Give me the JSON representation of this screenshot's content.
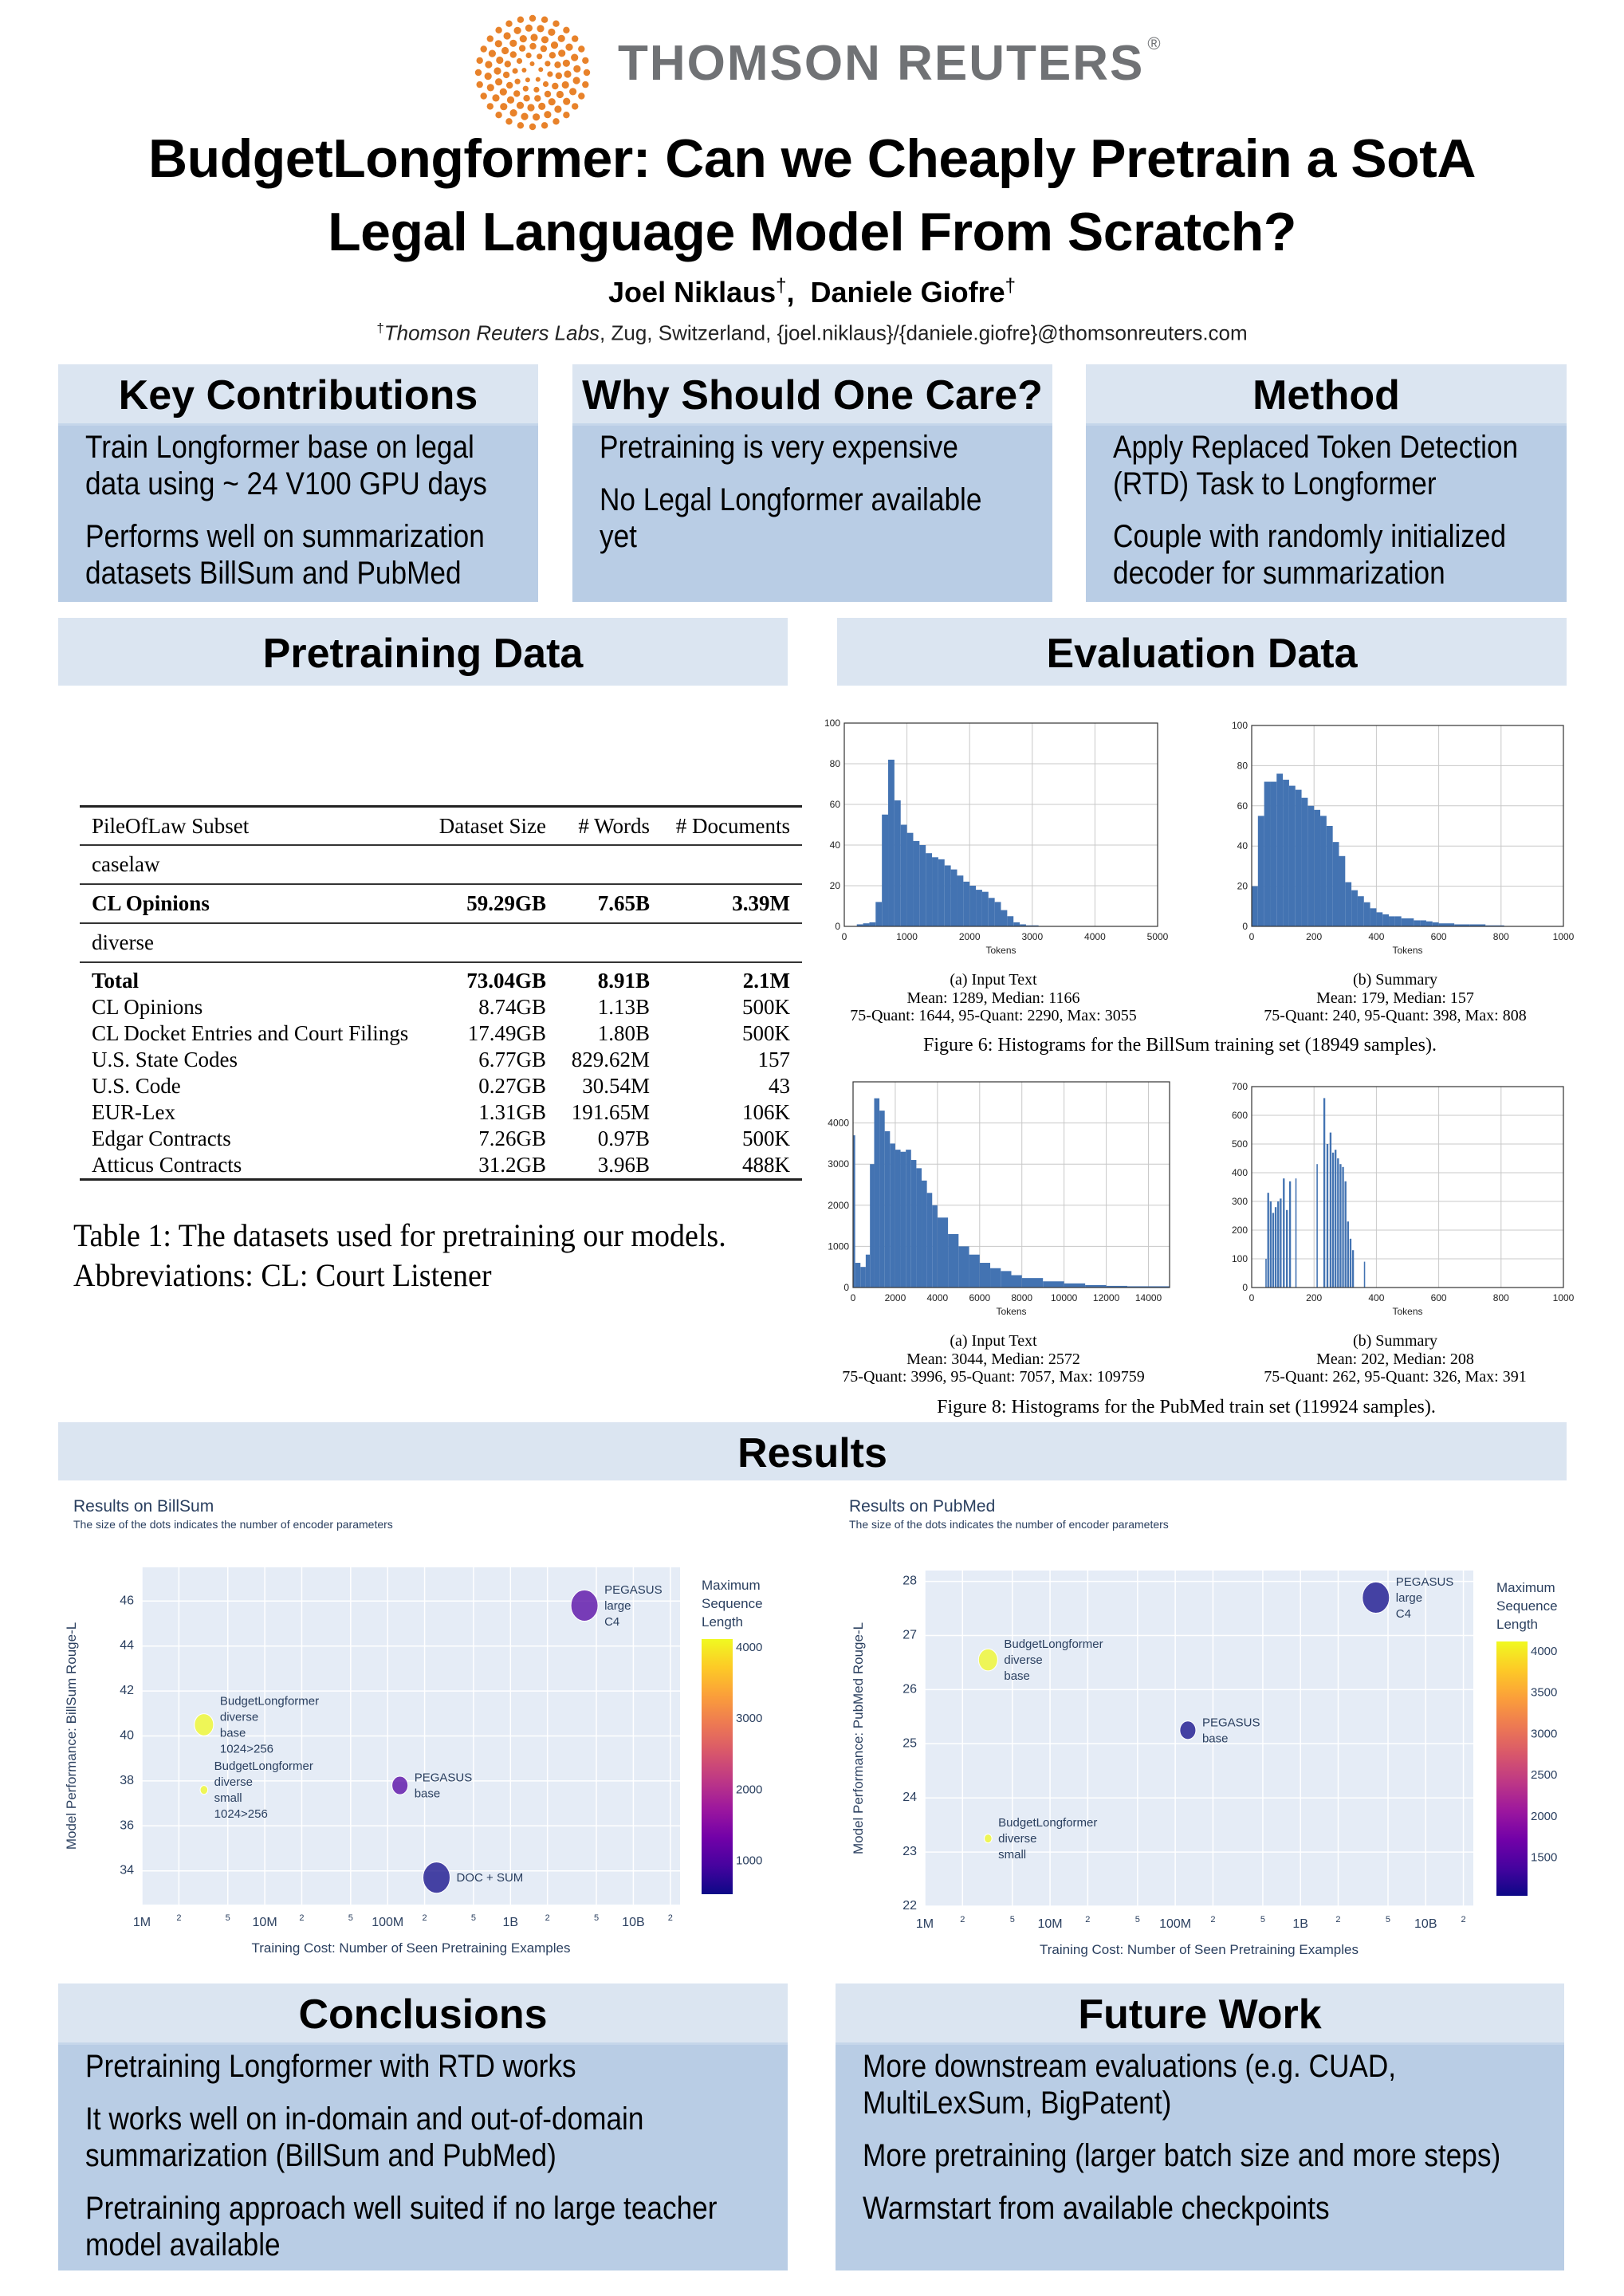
{
  "header": {
    "logo_text": "THOMSON REUTERS",
    "logo_mark": "®",
    "title_line1": "BudgetLongformer: Can we Cheaply Pretrain a SotA",
    "title_line2": "Legal Language Model From Scratch?",
    "authors": [
      {
        "name": "Joel Niklaus",
        "mark": "†"
      },
      {
        "name": "Daniele Giofre",
        "mark": "†"
      }
    ],
    "author_sep": ",",
    "affiliation_mark": "†",
    "affiliation_org": "Thomson Reuters Labs",
    "affiliation_rest": ", Zug, Switzerland, {joel.niklaus}/{daniele.giofre}@thomsonreuters.com"
  },
  "boxes": [
    {
      "title": "Key Contributions",
      "items": [
        "Train Longformer base on legal data using ~ 24 V100 GPU days",
        "Performs well on summarization datasets BillSum and PubMed"
      ]
    },
    {
      "title": "Why Should One Care?",
      "items": [
        "Pretraining is very expensive",
        "No Legal Longformer available yet"
      ]
    },
    {
      "title": "Method",
      "items": [
        "Apply Replaced Token Detection (RTD) Task to Longformer",
        "Couple with randomly initialized decoder for summarization"
      ]
    }
  ],
  "pretraining": {
    "title": "Pretraining Data",
    "table": {
      "headers": [
        "PileOfLaw Subset",
        "Dataset Size",
        "# Words",
        "# Documents"
      ],
      "group1": "caselaw",
      "group1_row": [
        "CL Opinions",
        "59.29GB",
        "7.65B",
        "3.39M"
      ],
      "group2": "diverse",
      "total_row": [
        "Total",
        "73.04GB",
        "8.91B",
        "2.1M"
      ],
      "rows": [
        [
          "CL Opinions",
          "8.74GB",
          "1.13B",
          "500K"
        ],
        [
          "CL Docket Entries and Court Filings",
          "17.49GB",
          "1.80B",
          "500K"
        ],
        [
          "U.S. State Codes",
          "6.77GB",
          "829.62M",
          "157"
        ],
        [
          "U.S. Code",
          "0.27GB",
          "30.54M",
          "43"
        ],
        [
          "EUR-Lex",
          "1.31GB",
          "191.65M",
          "106K"
        ],
        [
          "Edgar Contracts",
          "7.26GB",
          "0.97B",
          "500K"
        ],
        [
          "Atticus Contracts",
          "31.2GB",
          "3.96B",
          "488K"
        ]
      ]
    },
    "caption_line1": "Table 1: The datasets used for pretraining our models.",
    "caption_line2": "Abbreviations: CL: Court Listener"
  },
  "evaluation": {
    "title": "Evaluation Data",
    "figure6_caption": "Figure 6: Histograms for the BillSum training set (18949 samples).",
    "figure8_caption": "Figure 8: Histograms for the PubMed train set (119924 samples)."
  },
  "results": {
    "title": "Results"
  },
  "conclusions": {
    "title": "Conclusions",
    "items": [
      "Pretraining Longformer with RTD works",
      "It works well on in-domain and out-of-domain summarization (BillSum and PubMed)",
      "Pretraining approach well suited if no large teacher model available"
    ]
  },
  "future_work": {
    "title": "Future Work",
    "items": [
      "More downstream evaluations (e.g. CUAD, MultiLexSum, BigPatent)",
      "More pretraining (larger batch size and more steps)",
      "Warmstart from available checkpoints"
    ]
  },
  "colors": {
    "accent_orange": "#e8822a",
    "head_band": "#dbe5f1",
    "body_band": "#b9cde5",
    "bar": "#4373b2"
  },
  "chart_data": [
    {
      "id": "billsum-input",
      "type": "bar",
      "caption": [
        "(a) Input Text",
        "Mean: 1289, Median: 1166",
        "75-Quant: 1644, 95-Quant: 2290, Max: 3055"
      ],
      "xlabel": "Tokens",
      "xlim": [
        0,
        5000
      ],
      "ylim": [
        0,
        100
      ],
      "xticks": [
        0,
        1000,
        2000,
        3000,
        4000,
        5000
      ],
      "yticks": [
        0,
        20,
        40,
        60,
        80,
        100
      ],
      "bins": [
        [
          200,
          300,
          1
        ],
        [
          300,
          400,
          1.5
        ],
        [
          400,
          500,
          2
        ],
        [
          500,
          600,
          12
        ],
        [
          600,
          700,
          55
        ],
        [
          700,
          800,
          82
        ],
        [
          800,
          900,
          62
        ],
        [
          900,
          1000,
          50
        ],
        [
          1000,
          1100,
          46
        ],
        [
          1100,
          1200,
          42
        ],
        [
          1200,
          1300,
          40
        ],
        [
          1300,
          1400,
          36
        ],
        [
          1400,
          1500,
          34
        ],
        [
          1500,
          1600,
          33
        ],
        [
          1600,
          1700,
          30
        ],
        [
          1700,
          1800,
          28
        ],
        [
          1800,
          1900,
          25
        ],
        [
          1900,
          2000,
          22
        ],
        [
          2000,
          2100,
          20
        ],
        [
          2100,
          2200,
          18
        ],
        [
          2200,
          2300,
          17
        ],
        [
          2300,
          2400,
          14
        ],
        [
          2400,
          2500,
          12
        ],
        [
          2500,
          2600,
          8
        ],
        [
          2600,
          2700,
          5
        ],
        [
          2700,
          2800,
          2
        ],
        [
          2800,
          2900,
          1
        ],
        [
          2900,
          3000,
          0.5
        ],
        [
          3000,
          3100,
          0.5
        ]
      ]
    },
    {
      "id": "billsum-summary",
      "type": "bar",
      "caption": [
        "(b) Summary",
        "Mean: 179, Median: 157",
        "75-Quant: 240, 95-Quant: 398, Max: 808"
      ],
      "xlabel": "Tokens",
      "xlim": [
        0,
        1000
      ],
      "ylim": [
        0,
        100
      ],
      "xticks": [
        0,
        200,
        400,
        600,
        800,
        1000
      ],
      "yticks": [
        0,
        20,
        40,
        60,
        80,
        100
      ],
      "bins": [
        [
          0,
          20,
          20
        ],
        [
          20,
          40,
          55
        ],
        [
          40,
          60,
          72
        ],
        [
          60,
          80,
          72
        ],
        [
          80,
          100,
          76
        ],
        [
          100,
          120,
          73
        ],
        [
          120,
          140,
          70
        ],
        [
          140,
          160,
          68
        ],
        [
          160,
          180,
          64
        ],
        [
          180,
          200,
          60
        ],
        [
          200,
          220,
          58
        ],
        [
          220,
          240,
          55
        ],
        [
          240,
          260,
          50
        ],
        [
          260,
          280,
          42
        ],
        [
          280,
          300,
          35
        ],
        [
          300,
          320,
          22
        ],
        [
          320,
          340,
          18
        ],
        [
          340,
          360,
          15
        ],
        [
          360,
          380,
          12
        ],
        [
          380,
          400,
          9
        ],
        [
          400,
          420,
          7
        ],
        [
          420,
          440,
          6
        ],
        [
          440,
          460,
          5
        ],
        [
          460,
          480,
          5
        ],
        [
          480,
          500,
          4
        ],
        [
          500,
          520,
          4
        ],
        [
          520,
          540,
          3
        ],
        [
          540,
          560,
          3
        ],
        [
          560,
          580,
          2.5
        ],
        [
          580,
          600,
          2
        ],
        [
          600,
          650,
          1.5
        ],
        [
          650,
          700,
          1
        ],
        [
          700,
          750,
          1
        ],
        [
          750,
          810,
          0.5
        ]
      ]
    },
    {
      "id": "pubmed-input",
      "type": "bar",
      "caption": [
        "(a) Input Text",
        "Mean: 3044, Median: 2572",
        "75-Quant: 3996, 95-Quant: 7057, Max: 109759"
      ],
      "xlabel": "Tokens",
      "xlim": [
        0,
        15000
      ],
      "ylim": [
        0,
        5000
      ],
      "xticks": [
        0,
        2000,
        4000,
        6000,
        8000,
        10000,
        12000,
        14000
      ],
      "yticks": [
        0,
        1000,
        2000,
        3000,
        4000
      ],
      "bins": [
        [
          0,
          100,
          3700
        ],
        [
          100,
          350,
          600
        ],
        [
          350,
          600,
          500
        ],
        [
          600,
          800,
          800
        ],
        [
          800,
          1000,
          3000
        ],
        [
          1000,
          1250,
          4600
        ],
        [
          1250,
          1500,
          4300
        ],
        [
          1500,
          1750,
          3800
        ],
        [
          1750,
          2000,
          3500
        ],
        [
          2000,
          2250,
          3350
        ],
        [
          2250,
          2500,
          3300
        ],
        [
          2500,
          2750,
          3350
        ],
        [
          2750,
          3000,
          3100
        ],
        [
          3000,
          3250,
          2900
        ],
        [
          3250,
          3500,
          2600
        ],
        [
          3500,
          3750,
          2300
        ],
        [
          3750,
          4000,
          2000
        ],
        [
          4000,
          4500,
          1700
        ],
        [
          4500,
          5000,
          1300
        ],
        [
          5000,
          5500,
          1000
        ],
        [
          5500,
          6000,
          800
        ],
        [
          6000,
          6500,
          600
        ],
        [
          6500,
          7000,
          470
        ],
        [
          7000,
          7500,
          400
        ],
        [
          7500,
          8000,
          300
        ],
        [
          8000,
          9000,
          230
        ],
        [
          9000,
          10000,
          150
        ],
        [
          10000,
          11000,
          100
        ],
        [
          11000,
          12000,
          60
        ],
        [
          12000,
          13000,
          40
        ],
        [
          13000,
          15000,
          30
        ]
      ]
    },
    {
      "id": "pubmed-summary",
      "type": "bar",
      "caption": [
        "(b) Summary",
        "Mean: 202, Median: 208",
        "75-Quant: 262, 95-Quant: 326, Max: 391"
      ],
      "xlabel": "Tokens",
      "xlim": [
        0,
        1000
      ],
      "ylim": [
        0,
        700
      ],
      "xticks": [
        0,
        200,
        400,
        600,
        800,
        1000
      ],
      "yticks": [
        0,
        100,
        200,
        300,
        400,
        500,
        600,
        700
      ],
      "bins": [
        [
          44,
          48,
          100
        ],
        [
          50,
          56,
          330
        ],
        [
          58,
          64,
          300
        ],
        [
          66,
          72,
          260
        ],
        [
          74,
          80,
          280
        ],
        [
          82,
          88,
          300
        ],
        [
          90,
          96,
          310
        ],
        [
          100,
          106,
          380
        ],
        [
          110,
          116,
          270
        ],
        [
          120,
          126,
          370
        ],
        [
          140,
          144,
          380
        ],
        [
          208,
          212,
          430
        ],
        [
          230,
          236,
          660
        ],
        [
          240,
          246,
          500
        ],
        [
          250,
          256,
          540
        ],
        [
          258,
          264,
          470
        ],
        [
          266,
          272,
          480
        ],
        [
          274,
          280,
          450
        ],
        [
          282,
          288,
          430
        ],
        [
          290,
          296,
          420
        ],
        [
          298,
          304,
          370
        ],
        [
          306,
          312,
          230
        ],
        [
          314,
          320,
          170
        ],
        [
          322,
          328,
          130
        ],
        [
          360,
          364,
          90
        ]
      ]
    },
    {
      "id": "results-billsum",
      "type": "scatter",
      "title": "Results on BillSum",
      "subtitle": "The size of the dots indicates the number of encoder parameters",
      "xlabel": "Training Cost: Number of Seen Pretraining Examples",
      "ylabel": "Model Performance:  BillSum Rouge-L",
      "xscale": "log",
      "xlim": [
        1000000,
        24000000000
      ],
      "ylim": [
        32.5,
        47.5
      ],
      "xticks": [
        [
          1000000,
          "1M"
        ],
        [
          2000000,
          "2"
        ],
        [
          5000000,
          "5"
        ],
        [
          10000000,
          "10M"
        ],
        [
          20000000,
          "2"
        ],
        [
          50000000,
          "5"
        ],
        [
          100000000,
          "100M"
        ],
        [
          200000000,
          "2"
        ],
        [
          500000000,
          "5"
        ],
        [
          1000000000,
          "1B"
        ],
        [
          2000000000,
          "2"
        ],
        [
          5000000000,
          "5"
        ],
        [
          10000000000,
          "10B"
        ],
        [
          20000000000,
          "2"
        ]
      ],
      "yticks": [
        34,
        36,
        38,
        40,
        42,
        44,
        46
      ],
      "colorbar": {
        "title": [
          "Maximum",
          "Sequence",
          "Length"
        ],
        "range": [
          513,
          4100
        ],
        "ticks": [
          1000,
          2000,
          3000,
          4000
        ]
      },
      "points": [
        {
          "label": [
            "BudgetLongformer",
            "diverse",
            "base",
            "1024>256"
          ],
          "x": 3200000,
          "y": 40.5,
          "max_seq_len": 4096,
          "size_rel": 0.5
        },
        {
          "label": [
            "BudgetLongformer",
            "diverse",
            "small",
            "1024>256"
          ],
          "x": 3200000,
          "y": 37.6,
          "max_seq_len": 4096,
          "size_rel": 0.08
        },
        {
          "label": [
            "PEGASUS",
            "base"
          ],
          "x": 126000000,
          "y": 37.8,
          "max_seq_len": 1024,
          "size_rel": 0.35
        },
        {
          "label": [
            "DOC + SUM"
          ],
          "x": 250000000,
          "y": 33.7,
          "max_seq_len": 512,
          "size_rel": 1.0
        },
        {
          "label": [
            "PEGASUS",
            "large",
            "C4"
          ],
          "x": 4000000000,
          "y": 45.8,
          "max_seq_len": 1024,
          "size_rel": 1.0
        }
      ]
    },
    {
      "id": "results-pubmed",
      "type": "scatter",
      "title": "Results on PubMed",
      "subtitle": "The size of the dots indicates the number of encoder parameters",
      "xlabel": "Training Cost: Number of Seen Pretraining Examples",
      "ylabel": "Model Performance:  PubMed Rouge-L",
      "xscale": "log",
      "xlim": [
        1000000,
        24000000000
      ],
      "ylim": [
        22,
        28.2
      ],
      "xticks": [
        [
          1000000,
          "1M"
        ],
        [
          2000000,
          "2"
        ],
        [
          5000000,
          "5"
        ],
        [
          10000000,
          "10M"
        ],
        [
          20000000,
          "2"
        ],
        [
          50000000,
          "5"
        ],
        [
          100000000,
          "100M"
        ],
        [
          200000000,
          "2"
        ],
        [
          500000000,
          "5"
        ],
        [
          1000000000,
          "1B"
        ],
        [
          2000000000,
          "2"
        ],
        [
          5000000000,
          "5"
        ],
        [
          10000000000,
          "10B"
        ],
        [
          20000000000,
          "2"
        ]
      ],
      "yticks": [
        22,
        23,
        24,
        25,
        26,
        27,
        28
      ],
      "colorbar": {
        "title": [
          "Maximum",
          "Sequence",
          "Length"
        ],
        "range": [
          1024,
          4105
        ],
        "ticks": [
          1500,
          2000,
          2500,
          3000,
          3500,
          4000
        ]
      },
      "points": [
        {
          "label": [
            "BudgetLongformer",
            "diverse",
            "base"
          ],
          "x": 3200000,
          "y": 26.55,
          "max_seq_len": 4096,
          "size_rel": 0.5
        },
        {
          "label": [
            "BudgetLongformer",
            "diverse",
            "small"
          ],
          "x": 3200000,
          "y": 23.25,
          "max_seq_len": 4096,
          "size_rel": 0.08
        },
        {
          "label": [
            "PEGASUS",
            "base"
          ],
          "x": 126000000,
          "y": 25.25,
          "max_seq_len": 1024,
          "size_rel": 0.35
        },
        {
          "label": [
            "PEGASUS",
            "large",
            "C4"
          ],
          "x": 4000000000,
          "y": 27.7,
          "max_seq_len": 1024,
          "size_rel": 1.0
        }
      ]
    }
  ]
}
